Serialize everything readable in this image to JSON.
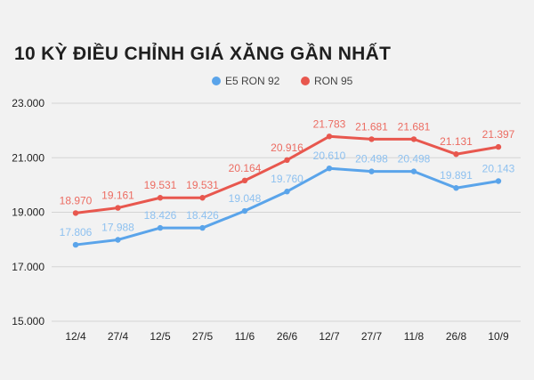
{
  "chart_data": {
    "type": "line",
    "title": "10 KỲ ĐIỀU CHỈNH GIÁ XĂNG GẦN NHẤT",
    "categories": [
      "12/4",
      "27/4",
      "12/5",
      "27/5",
      "11/6",
      "26/6",
      "12/7",
      "27/7",
      "11/8",
      "26/8",
      "10/9"
    ],
    "series": [
      {
        "name": "E5 RON 92",
        "color": "#5aa4ea",
        "label_color": "#8ec1f0",
        "values": [
          17806,
          17988,
          18426,
          18426,
          19048,
          19760,
          20610,
          20498,
          20498,
          19891,
          20143
        ],
        "labels": [
          "17.806",
          "17.988",
          "18.426",
          "18.426",
          "19.048",
          "19.760",
          "20.610",
          "20.498",
          "20.498",
          "19.891",
          "20.143"
        ]
      },
      {
        "name": "RON 95",
        "color": "#e8574e",
        "label_color": "#ec6c62",
        "values": [
          18970,
          19161,
          19531,
          19531,
          20164,
          20916,
          21783,
          21681,
          21681,
          21131,
          21397
        ],
        "labels": [
          "18.970",
          "19.161",
          "19.531",
          "19.531",
          "20.164",
          "20.916",
          "21.783",
          "21.681",
          "21.681",
          "21.131",
          "21.397"
        ]
      }
    ],
    "ylim": [
      15000,
      23000
    ],
    "yticks": [
      15000,
      17000,
      19000,
      21000,
      23000
    ],
    "ytick_labels": [
      "15.000",
      "17.000",
      "19.000",
      "21.000",
      "23.000"
    ],
    "grid": true,
    "legend_position": "top-right"
  }
}
